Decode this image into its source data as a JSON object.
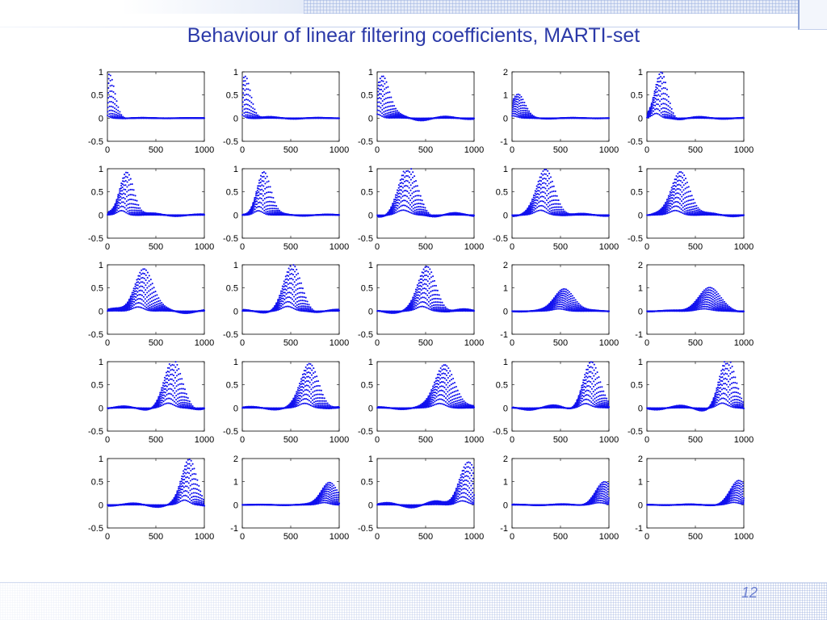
{
  "slide": {
    "title": "Behaviour of linear filtering coefficients, MARTI-set",
    "page_number": "12"
  },
  "colors": {
    "accent": "#2b39a8",
    "marker": "#1010ee",
    "frame": "#000000"
  },
  "chart_data": {
    "type": "scatter",
    "layout": "5x5 grid of small multiples",
    "title": "Behaviour of linear filtering coefficients, MARTI-set",
    "xlim": [
      0,
      1000
    ],
    "xticks": [
      0,
      500,
      1000
    ],
    "marker": "dot",
    "curves_per_panel": 10,
    "panels": [
      {
        "row": 1,
        "col": 1,
        "ylim": [
          -0.5,
          1
        ],
        "yticks": [
          -0.5,
          0,
          0.5,
          1
        ],
        "peak_x": 20,
        "peak_y": 0.95,
        "width": 80,
        "dip": 0.02
      },
      {
        "row": 1,
        "col": 2,
        "ylim": [
          -0.5,
          1
        ],
        "yticks": [
          -0.5,
          0,
          0.5,
          1
        ],
        "peak_x": 30,
        "peak_y": 0.95,
        "width": 80,
        "dip": 0.05
      },
      {
        "row": 1,
        "col": 3,
        "ylim": [
          -0.5,
          1
        ],
        "yticks": [
          -0.5,
          0,
          0.5,
          1
        ],
        "peak_x": 50,
        "peak_y": 0.95,
        "width": 100,
        "dip": 0.1
      },
      {
        "row": 1,
        "col": 4,
        "ylim": [
          -1,
          2
        ],
        "yticks": [
          -1,
          0,
          1,
          2
        ],
        "peak_x": 60,
        "peak_y": 1.0,
        "width": 100,
        "dip": 0.05
      },
      {
        "row": 1,
        "col": 5,
        "ylim": [
          -0.5,
          1
        ],
        "yticks": [
          -0.5,
          0,
          0.5,
          1
        ],
        "peak_x": 150,
        "peak_y": 0.97,
        "width": 90,
        "dip": 0.06
      },
      {
        "row": 2,
        "col": 1,
        "ylim": [
          -0.5,
          1
        ],
        "yticks": [
          -0.5,
          0,
          0.5,
          1
        ],
        "peak_x": 200,
        "peak_y": 0.98,
        "width": 100,
        "dip": 0.06
      },
      {
        "row": 2,
        "col": 2,
        "ylim": [
          -0.5,
          1
        ],
        "yticks": [
          -0.5,
          0,
          0.5,
          1
        ],
        "peak_x": 220,
        "peak_y": 0.95,
        "width": 100,
        "dip": 0.04
      },
      {
        "row": 2,
        "col": 3,
        "ylim": [
          -0.5,
          1
        ],
        "yticks": [
          -0.5,
          0,
          0.5,
          1
        ],
        "peak_x": 320,
        "peak_y": 0.98,
        "width": 140,
        "dip": 0.08
      },
      {
        "row": 2,
        "col": 4,
        "ylim": [
          -0.5,
          1
        ],
        "yticks": [
          -0.5,
          0,
          0.5,
          1
        ],
        "peak_x": 350,
        "peak_y": 0.98,
        "width": 130,
        "dip": 0.05
      },
      {
        "row": 2,
        "col": 5,
        "ylim": [
          -0.5,
          1
        ],
        "yticks": [
          -0.5,
          0,
          0.5,
          1
        ],
        "peak_x": 350,
        "peak_y": 0.98,
        "width": 130,
        "dip": 0.06
      },
      {
        "row": 3,
        "col": 1,
        "ylim": [
          -0.5,
          1
        ],
        "yticks": [
          -0.5,
          0,
          0.5,
          1
        ],
        "peak_x": 370,
        "peak_y": 0.97,
        "width": 130,
        "dip": 0.08
      },
      {
        "row": 3,
        "col": 2,
        "ylim": [
          -0.5,
          1
        ],
        "yticks": [
          -0.5,
          0,
          0.5,
          1
        ],
        "peak_x": 520,
        "peak_y": 0.95,
        "width": 130,
        "dip": 0.06
      },
      {
        "row": 3,
        "col": 3,
        "ylim": [
          -0.5,
          1
        ],
        "yticks": [
          -0.5,
          0,
          0.5,
          1
        ],
        "peak_x": 520,
        "peak_y": 0.95,
        "width": 130,
        "dip": 0.07
      },
      {
        "row": 3,
        "col": 4,
        "ylim": [
          -1,
          2
        ],
        "yticks": [
          -1,
          0,
          1,
          2
        ],
        "peak_x": 540,
        "peak_y": 1.0,
        "width": 140,
        "dip": 0.05
      },
      {
        "row": 3,
        "col": 5,
        "ylim": [
          -1,
          2
        ],
        "yticks": [
          -1,
          0,
          1,
          2
        ],
        "peak_x": 640,
        "peak_y": 1.0,
        "width": 160,
        "dip": 0.05
      },
      {
        "row": 4,
        "col": 1,
        "ylim": [
          -0.5,
          1
        ],
        "yticks": [
          -0.5,
          0,
          0.5,
          1
        ],
        "peak_x": 680,
        "peak_y": 0.97,
        "width": 130,
        "dip": 0.07
      },
      {
        "row": 4,
        "col": 2,
        "ylim": [
          -0.5,
          1
        ],
        "yticks": [
          -0.5,
          0,
          0.5,
          1
        ],
        "peak_x": 700,
        "peak_y": 0.95,
        "width": 130,
        "dip": 0.06
      },
      {
        "row": 4,
        "col": 3,
        "ylim": [
          -0.5,
          1
        ],
        "yticks": [
          -0.5,
          0,
          0.5,
          1
        ],
        "peak_x": 700,
        "peak_y": 0.97,
        "width": 140,
        "dip": 0.05
      },
      {
        "row": 4,
        "col": 4,
        "ylim": [
          -0.5,
          1
        ],
        "yticks": [
          -0.5,
          0,
          0.5,
          1
        ],
        "peak_x": 810,
        "peak_y": 0.97,
        "width": 120,
        "dip": 0.1
      },
      {
        "row": 4,
        "col": 5,
        "ylim": [
          -0.5,
          1
        ],
        "yticks": [
          -0.5,
          0,
          0.5,
          1
        ],
        "peak_x": 830,
        "peak_y": 0.97,
        "width": 120,
        "dip": 0.1
      },
      {
        "row": 5,
        "col": 1,
        "ylim": [
          -0.5,
          1
        ],
        "yticks": [
          -0.5,
          0,
          0.5,
          1
        ],
        "peak_x": 850,
        "peak_y": 0.95,
        "width": 110,
        "dip": 0.08
      },
      {
        "row": 5,
        "col": 2,
        "ylim": [
          -1,
          2
        ],
        "yticks": [
          -1,
          0,
          1,
          2
        ],
        "peak_x": 900,
        "peak_y": 1.0,
        "width": 120,
        "dip": 0.04
      },
      {
        "row": 5,
        "col": 3,
        "ylim": [
          -0.5,
          1
        ],
        "yticks": [
          -0.5,
          0,
          0.5,
          1
        ],
        "peak_x": 930,
        "peak_y": 0.97,
        "width": 130,
        "dip": 0.12
      },
      {
        "row": 5,
        "col": 4,
        "ylim": [
          -1,
          2
        ],
        "yticks": [
          -1,
          0,
          1,
          2
        ],
        "peak_x": 950,
        "peak_y": 0.95,
        "width": 130,
        "dip": 0.06
      },
      {
        "row": 5,
        "col": 5,
        "ylim": [
          -1,
          2
        ],
        "yticks": [
          -1,
          0,
          1,
          2
        ],
        "peak_x": 950,
        "peak_y": 1.0,
        "width": 130,
        "dip": 0.05
      }
    ]
  }
}
